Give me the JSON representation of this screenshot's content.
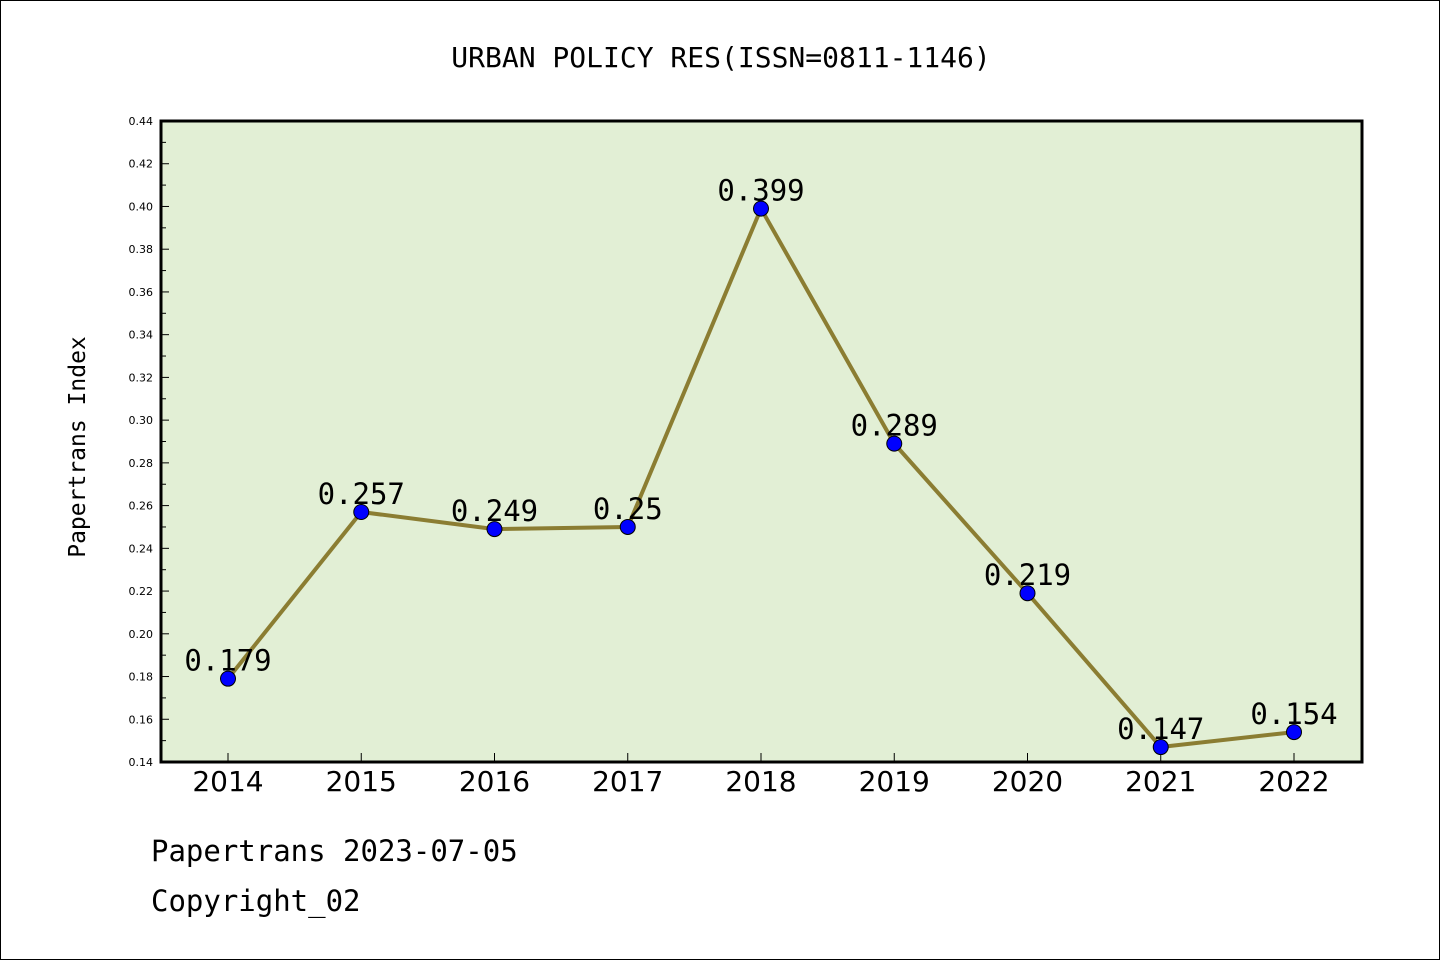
{
  "chart_data": {
    "type": "line",
    "title": "URBAN POLICY RES(ISSN=0811-1146)",
    "xlabel": "",
    "ylabel": "Papertrans Index",
    "categories": [
      "2014",
      "2015",
      "2016",
      "2017",
      "2018",
      "2019",
      "2020",
      "2021",
      "2022"
    ],
    "series": [
      {
        "values": [
          0.179,
          0.257,
          0.249,
          0.25,
          0.399,
          0.289,
          0.219,
          0.147,
          0.154
        ],
        "labels": [
          "0.179",
          "0.257",
          "0.249",
          "0.25",
          "0.399",
          "0.289",
          "0.219",
          "0.147",
          "0.154"
        ]
      }
    ],
    "ylim": [
      0.14,
      0.44
    ],
    "yticks": [
      "0.14",
      "0.16",
      "0.18",
      "0.20",
      "0.22",
      "0.24",
      "0.26",
      "0.28",
      "0.30",
      "0.32",
      "0.34",
      "0.36",
      "0.38",
      "0.40",
      "0.42",
      "0.44"
    ],
    "grid": false,
    "colors": {
      "plot_background": "#e2efd5",
      "line": "#8b7d32",
      "marker": "#0000ff"
    }
  },
  "footer": {
    "line1": "Papertrans 2023-07-05",
    "line2": "Copyright_02"
  }
}
